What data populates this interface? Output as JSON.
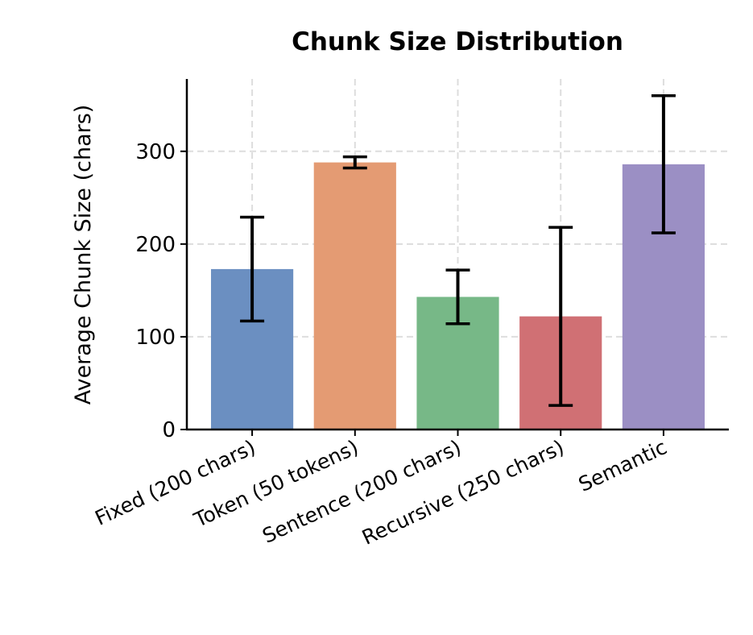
{
  "chart_data": {
    "type": "bar",
    "title": "Chunk Size Distribution",
    "xlabel": "",
    "ylabel": "Average Chunk Size (chars)",
    "categories": [
      "Fixed (200 chars)",
      "Token (50 tokens)",
      "Sentence (200 chars)",
      "Recursive (250 chars)",
      "Semantic"
    ],
    "values": [
      173,
      288,
      143,
      122,
      286
    ],
    "errors": [
      56,
      6,
      29,
      96,
      74
    ],
    "colors": [
      "#6b8fc1",
      "#e49b73",
      "#77b887",
      "#d07074",
      "#9b8fc4"
    ],
    "ylim": [
      0,
      378
    ],
    "yticks": [
      0,
      100,
      200,
      300
    ],
    "grid": true
  }
}
